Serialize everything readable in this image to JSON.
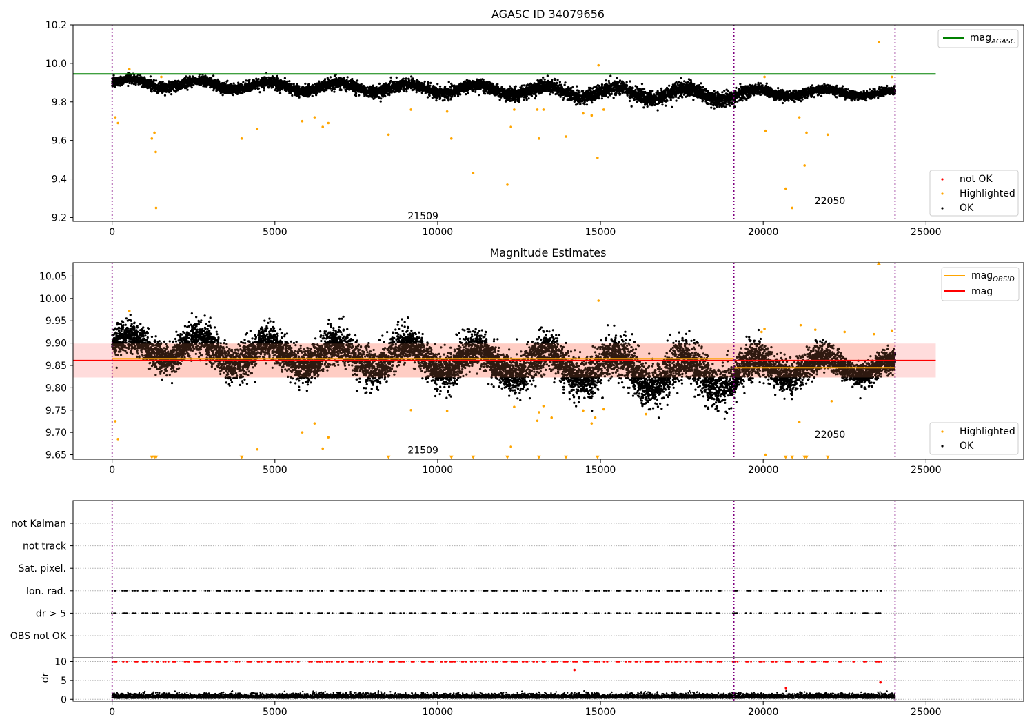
{
  "chart_data": [
    {
      "type": "scatter",
      "title": "AGASC ID 34079656",
      "xlim": [
        -1200,
        28000
      ],
      "ylim": [
        9.18,
        10.2
      ],
      "xticks": [
        0,
        5000,
        10000,
        15000,
        20000,
        25000
      ],
      "yticks": [
        9.2,
        9.4,
        9.6,
        9.8,
        10.0,
        10.2
      ],
      "ytick_labels": [
        "9.2",
        "9.4",
        "9.6",
        "9.8",
        "10.0",
        "10.2"
      ],
      "vlines": [
        0,
        19100,
        24050
      ],
      "obsid_labels": [
        {
          "text": "21509",
          "x": 9550,
          "y": 9.19
        },
        {
          "text": "22050",
          "x": 22050,
          "y": 9.27
        }
      ],
      "hlines": [
        {
          "name": "mag_AGASC",
          "y": 9.945,
          "x_range": [
            -1200,
            25300
          ],
          "color": "#008000"
        }
      ],
      "series": [
        {
          "name": "not OK",
          "color": "#ff0000",
          "points": []
        },
        {
          "name": "Highlighted",
          "color": "#ffa500",
          "points": [
            [
              100,
              9.72
            ],
            [
              180,
              9.69
            ],
            [
              530,
              9.97
            ],
            [
              1220,
              9.61
            ],
            [
              1300,
              9.64
            ],
            [
              1340,
              9.54
            ],
            [
              1350,
              9.25
            ],
            [
              1510,
              9.93
            ],
            [
              3980,
              9.61
            ],
            [
              4460,
              9.66
            ],
            [
              5840,
              9.7
            ],
            [
              6220,
              9.72
            ],
            [
              6470,
              9.67
            ],
            [
              6640,
              9.69
            ],
            [
              8490,
              9.63
            ],
            [
              9180,
              9.76
            ],
            [
              10290,
              9.75
            ],
            [
              10420,
              9.61
            ],
            [
              11090,
              9.43
            ],
            [
              12140,
              9.37
            ],
            [
              12250,
              9.67
            ],
            [
              12350,
              9.76
            ],
            [
              13060,
              9.76
            ],
            [
              13110,
              9.61
            ],
            [
              13250,
              9.76
            ],
            [
              13940,
              9.62
            ],
            [
              14470,
              9.74
            ],
            [
              14730,
              9.73
            ],
            [
              14910,
              9.51
            ],
            [
              14940,
              9.99
            ],
            [
              15100,
              9.76
            ],
            [
              20040,
              9.93
            ],
            [
              20070,
              9.65
            ],
            [
              20690,
              9.35
            ],
            [
              20890,
              9.25
            ],
            [
              21110,
              9.72
            ],
            [
              21270,
              9.47
            ],
            [
              21330,
              9.64
            ],
            [
              21980,
              9.63
            ],
            [
              23550,
              10.11
            ],
            [
              23950,
              9.93
            ]
          ]
        },
        {
          "name": "OK",
          "color": "#000000",
          "points": []
        }
      ],
      "ok_band": {
        "x_range": [
          0,
          24050
        ],
        "ranges": [
          [
            0,
            9.9,
            0.045
          ],
          [
            2500,
            9.89,
            0.045
          ],
          [
            5000,
            9.88,
            0.05
          ],
          [
            7500,
            9.875,
            0.05
          ],
          [
            10000,
            9.87,
            0.05
          ],
          [
            12500,
            9.86,
            0.055
          ],
          [
            15000,
            9.85,
            0.06
          ],
          [
            17500,
            9.84,
            0.07
          ],
          [
            19100,
            9.835,
            0.06
          ],
          [
            21000,
            9.85,
            0.04
          ],
          [
            24050,
            9.845,
            0.035
          ]
        ]
      },
      "legend": {
        "upper": [
          "mag_AGASC"
        ],
        "lower": [
          "not OK",
          "Highlighted",
          "OK"
        ]
      }
    },
    {
      "type": "scatter",
      "title": "Magnitude Estimates",
      "xlim": [
        -1200,
        28000
      ],
      "ylim": [
        9.64,
        10.08
      ],
      "xticks": [
        0,
        5000,
        10000,
        15000,
        20000,
        25000
      ],
      "yticks": [
        9.65,
        9.7,
        9.75,
        9.8,
        9.85,
        9.9,
        9.95,
        10.0,
        10.05
      ],
      "ytick_labels": [
        "9.65",
        "9.70",
        "9.75",
        "9.80",
        "9.85",
        "9.90",
        "9.95",
        "10.00",
        "10.05"
      ],
      "vlines": [
        0,
        19100,
        24050
      ],
      "obsid_labels": [
        {
          "text": "21509",
          "x": 9550,
          "y": 9.653
        },
        {
          "text": "22050",
          "x": 22050,
          "y": 9.688
        }
      ],
      "hlines": [
        {
          "name": "mag_OBSID",
          "color": "#ffa500",
          "segments": [
            {
              "x_range": [
                0,
                19100
              ],
              "y": 9.865
            },
            {
              "x_range": [
                19100,
                24050
              ],
              "y": 9.845
            }
          ]
        },
        {
          "name": "mag",
          "y": 9.861,
          "x_range": [
            -1200,
            25300
          ],
          "color": "#ff0000",
          "band": [
            9.823,
            9.899
          ]
        }
      ],
      "series": [
        {
          "name": "Highlighted",
          "color": "#ffa500",
          "points": [
            [
              100,
              9.725
            ],
            [
              180,
              9.685
            ],
            [
              530,
              9.972
            ],
            [
              4460,
              9.662
            ],
            [
              5840,
              9.7
            ],
            [
              6220,
              9.72
            ],
            [
              6470,
              9.664
            ],
            [
              6640,
              9.689
            ],
            [
              9180,
              9.75
            ],
            [
              10290,
              9.748
            ],
            [
              12250,
              9.668
            ],
            [
              12350,
              9.757
            ],
            [
              13060,
              9.726
            ],
            [
              13110,
              9.745
            ],
            [
              13250,
              9.759
            ],
            [
              13500,
              9.733
            ],
            [
              14470,
              9.749
            ],
            [
              14730,
              9.72
            ],
            [
              14840,
              9.733
            ],
            [
              14940,
              9.995
            ],
            [
              15100,
              9.752
            ],
            [
              16400,
              9.741
            ],
            [
              19950,
              9.925
            ],
            [
              20040,
              9.932
            ],
            [
              20070,
              9.65
            ],
            [
              21110,
              9.723
            ],
            [
              21150,
              9.94
            ],
            [
              21600,
              9.93
            ],
            [
              22100,
              9.77
            ],
            [
              22500,
              9.925
            ],
            [
              23400,
              9.92
            ],
            [
              23950,
              9.928
            ]
          ]
        },
        {
          "name": "Highlighted (clipped)",
          "color": "#ffa500",
          "points": [
            [
              1220,
              9.645
            ],
            [
              1300,
              9.645
            ],
            [
              1350,
              9.645
            ],
            [
              3980,
              9.645
            ],
            [
              8490,
              9.645
            ],
            [
              10420,
              9.645
            ],
            [
              11090,
              9.645
            ],
            [
              12140,
              9.645
            ],
            [
              13110,
              9.645
            ],
            [
              13940,
              9.645
            ],
            [
              14910,
              9.645
            ],
            [
              20690,
              9.645
            ],
            [
              20890,
              9.645
            ],
            [
              21270,
              9.645
            ],
            [
              21330,
              9.645
            ],
            [
              21980,
              9.645
            ],
            [
              23550,
              10.078
            ]
          ]
        },
        {
          "name": "OK",
          "color": "#000000",
          "points": []
        }
      ],
      "ok_band": {
        "x_range": [
          0,
          24050
        ],
        "ranges": [
          [
            0,
            9.895,
            0.05
          ],
          [
            2500,
            9.885,
            0.06
          ],
          [
            5000,
            9.875,
            0.06
          ],
          [
            7500,
            9.87,
            0.065
          ],
          [
            10000,
            9.865,
            0.065
          ],
          [
            12500,
            9.855,
            0.065
          ],
          [
            15000,
            9.845,
            0.07
          ],
          [
            17500,
            9.83,
            0.08
          ],
          [
            19100,
            9.83,
            0.07
          ],
          [
            21000,
            9.85,
            0.05
          ],
          [
            24050,
            9.845,
            0.04
          ]
        ]
      },
      "legend": {
        "upper": [
          "mag_OBSID",
          "mag"
        ],
        "lower": [
          "Highlighted",
          "OK"
        ]
      }
    },
    {
      "type": "scatter",
      "title": "",
      "xlim": [
        -1200,
        28000
      ],
      "flag_rows": [
        "not Kalman",
        "not track",
        "Sat. pixel.",
        "Ion. rad.",
        "dr > 5",
        "OBS not OK"
      ],
      "flags_set": [
        "Ion. rad.",
        "dr > 5"
      ],
      "vlines": [
        0,
        19100,
        24050
      ]
    },
    {
      "type": "scatter",
      "title": "",
      "ylabel": "dr",
      "xlim": [
        -1200,
        28000
      ],
      "ylim": [
        -0.5,
        11
      ],
      "xticks": [
        0,
        5000,
        10000,
        15000,
        20000,
        25000
      ],
      "yticks": [
        0,
        5,
        10
      ],
      "ytick_labels": [
        "0",
        "5",
        "10"
      ],
      "vlines": [
        0,
        19100,
        24050
      ],
      "series": [
        {
          "name": "dr",
          "color": "#000000",
          "points": []
        },
        {
          "name": "dr > 5",
          "color": "#ff0000",
          "points": [
            [
              14200,
              7.8
            ],
            [
              20700,
              3.0
            ],
            [
              23600,
              4.5
            ]
          ]
        }
      ],
      "dr_band": {
        "x_range": [
          0,
          24050
        ],
        "range": [
          0,
          2
        ]
      },
      "dr_high_value": 10
    }
  ],
  "legend_text": {
    "mag_agasc_base": "mag",
    "mag_agasc_sub": "AGASC",
    "mag_obsid_base": "mag",
    "mag_obsid_sub": "OBSID",
    "mag_label": "mag",
    "not_ok": "not OK",
    "highlighted": "Highlighted",
    "ok": "OK"
  },
  "tick_labels_x": [
    "0",
    "5000",
    "10000",
    "15000",
    "20000",
    "25000"
  ],
  "colors": {
    "ok": "#000000",
    "highlighted": "#ffa500",
    "not_ok": "#ff0000",
    "agasc_line": "#008000",
    "obsid_line": "#ffa500",
    "mag_line": "#ff0000",
    "mag_band": "#ffd6d6",
    "vline": "#800080",
    "grid": "#b0b0b0"
  }
}
